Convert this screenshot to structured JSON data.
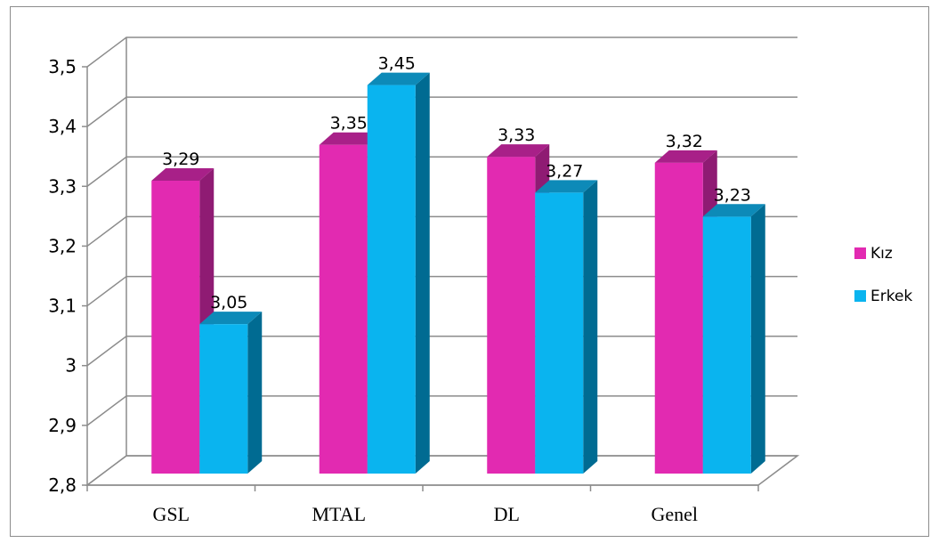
{
  "chart_data": {
    "type": "bar",
    "categories": [
      "GSL",
      "MTAL",
      "DL",
      "Genel"
    ],
    "series": [
      {
        "name": "Kız",
        "values": [
          3.29,
          3.35,
          3.33,
          3.32
        ],
        "labels": [
          "3,29",
          "3,35",
          "3,33",
          "3,32"
        ],
        "color": "#e22ab1",
        "side_color": "#8f1b73",
        "top_color": "#a82088"
      },
      {
        "name": "Erkek",
        "values": [
          3.05,
          3.45,
          3.27,
          3.23
        ],
        "labels": [
          "3,05",
          "3,45",
          "3,27",
          "3,23"
        ],
        "color": "#0ab4ef",
        "side_color": "#006b92",
        "top_color": "#0d8ab8"
      }
    ],
    "yticks": [
      2.8,
      2.9,
      3.0,
      3.1,
      3.2,
      3.3,
      3.4,
      3.5
    ],
    "ytick_labels": [
      "2,8",
      "2,9",
      "3",
      "3,1",
      "3,2",
      "3,3",
      "3,4",
      "3,5"
    ],
    "ylim": [
      2.8,
      3.5
    ],
    "grid": true,
    "legend": "right",
    "style": "3d-clustered-column"
  }
}
